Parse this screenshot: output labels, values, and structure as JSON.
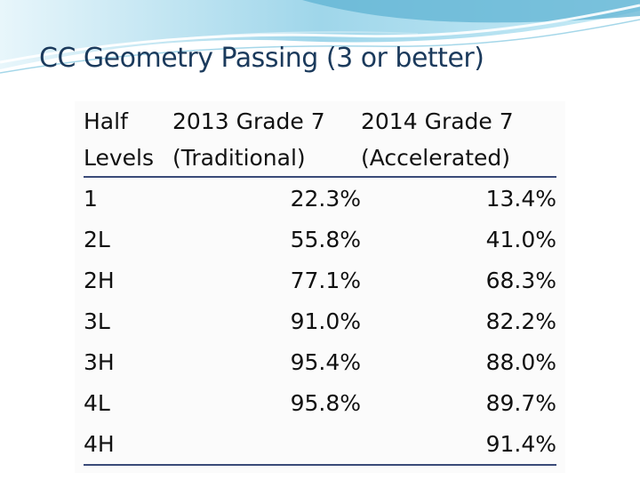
{
  "slide": {
    "title": "CC Geometry Passing (3 or better)"
  },
  "table": {
    "headers": [
      [
        "Half",
        "Levels"
      ],
      [
        "2013 Grade 7",
        "(Traditional)"
      ],
      [
        "2014 Grade 7",
        "(Accelerated)"
      ]
    ],
    "rows": [
      {
        "level": "1",
        "traditional": "22.3%",
        "accelerated": "13.4%"
      },
      {
        "level": "2L",
        "traditional": "55.8%",
        "accelerated": "41.0%"
      },
      {
        "level": "2H",
        "traditional": "77.1%",
        "accelerated": "68.3%"
      },
      {
        "level": "3L",
        "traditional": "91.0%",
        "accelerated": "82.2%"
      },
      {
        "level": "3H",
        "traditional": "95.4%",
        "accelerated": "88.0%"
      },
      {
        "level": "4L",
        "traditional": "95.8%",
        "accelerated": "89.7%"
      },
      {
        "level": "4H",
        "traditional": "",
        "accelerated": "91.4%"
      }
    ]
  },
  "colors": {
    "title": "#1b3a5c",
    "header_rule": "#3a4a78",
    "swoosh_light": "#bfe6f2",
    "swoosh_dark": "#5fb3d3"
  }
}
